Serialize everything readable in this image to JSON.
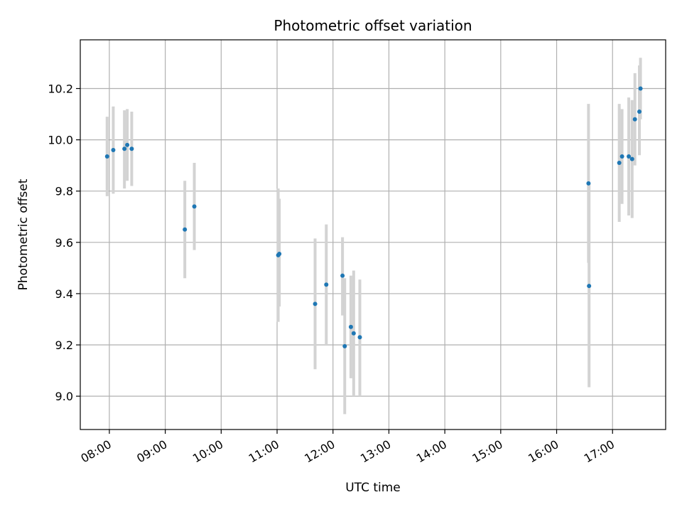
{
  "chart_data": {
    "type": "scatter",
    "title": "Photometric offset variation",
    "xlabel": "UTC time",
    "ylabel": "Photometric offset",
    "x_unit": "UTC hour of day",
    "xlim": [
      7.48,
      17.95
    ],
    "ylim": [
      8.87,
      10.39
    ],
    "xticks": [
      8,
      9,
      10,
      11,
      12,
      13,
      14,
      15,
      16,
      17
    ],
    "xtick_labels": [
      "08:00",
      "09:00",
      "10:00",
      "11:00",
      "12:00",
      "13:00",
      "14:00",
      "15:00",
      "16:00",
      "17:00"
    ],
    "yticks": [
      9.0,
      9.2,
      9.4,
      9.6,
      9.8,
      10.0,
      10.2
    ],
    "ytick_labels": [
      "9.0",
      "9.2",
      "9.4",
      "9.6",
      "9.8",
      "10.0",
      "10.2"
    ],
    "grid": true,
    "series": [
      {
        "marker_color": "#1f77b4",
        "errorbar_color": "#d3d3d3",
        "points": [
          {
            "x": 7.96,
            "y": 9.935,
            "ylow": 9.78,
            "yhigh": 10.09
          },
          {
            "x": 8.07,
            "y": 9.96,
            "ylow": 9.79,
            "yhigh": 10.13
          },
          {
            "x": 8.27,
            "y": 9.965,
            "ylow": 9.81,
            "yhigh": 10.115
          },
          {
            "x": 8.32,
            "y": 9.98,
            "ylow": 9.84,
            "yhigh": 10.12
          },
          {
            "x": 8.4,
            "y": 9.965,
            "ylow": 9.82,
            "yhigh": 10.11
          },
          {
            "x": 9.35,
            "y": 9.65,
            "ylow": 9.46,
            "yhigh": 9.84
          },
          {
            "x": 9.52,
            "y": 9.74,
            "ylow": 9.57,
            "yhigh": 9.91
          },
          {
            "x": 11.02,
            "y": 9.55,
            "ylow": 9.29,
            "yhigh": 9.81
          },
          {
            "x": 11.04,
            "y": 9.555,
            "ylow": 9.35,
            "yhigh": 9.77
          },
          {
            "x": 11.68,
            "y": 9.36,
            "ylow": 9.105,
            "yhigh": 9.615
          },
          {
            "x": 11.88,
            "y": 9.435,
            "ylow": 9.2,
            "yhigh": 9.67
          },
          {
            "x": 12.17,
            "y": 9.47,
            "ylow": 9.315,
            "yhigh": 9.62
          },
          {
            "x": 12.21,
            "y": 9.195,
            "ylow": 8.93,
            "yhigh": 9.46
          },
          {
            "x": 12.32,
            "y": 9.27,
            "ylow": 9.07,
            "yhigh": 9.47
          },
          {
            "x": 12.37,
            "y": 9.245,
            "ylow": 9.0,
            "yhigh": 9.49
          },
          {
            "x": 12.48,
            "y": 9.23,
            "ylow": 9.0,
            "yhigh": 9.455
          },
          {
            "x": 16.57,
            "y": 9.83,
            "ylow": 9.52,
            "yhigh": 10.14
          },
          {
            "x": 16.58,
            "y": 9.43,
            "ylow": 9.035,
            "yhigh": 9.83
          },
          {
            "x": 17.12,
            "y": 9.91,
            "ylow": 9.68,
            "yhigh": 10.14
          },
          {
            "x": 17.17,
            "y": 9.935,
            "ylow": 9.75,
            "yhigh": 10.12
          },
          {
            "x": 17.29,
            "y": 9.935,
            "ylow": 9.705,
            "yhigh": 10.165
          },
          {
            "x": 17.35,
            "y": 9.925,
            "ylow": 9.695,
            "yhigh": 10.155
          },
          {
            "x": 17.4,
            "y": 10.08,
            "ylow": 9.9,
            "yhigh": 10.26
          },
          {
            "x": 17.48,
            "y": 10.11,
            "ylow": 9.94,
            "yhigh": 10.29
          },
          {
            "x": 17.5,
            "y": 10.2,
            "ylow": 10.08,
            "yhigh": 10.32
          }
        ]
      }
    ]
  }
}
